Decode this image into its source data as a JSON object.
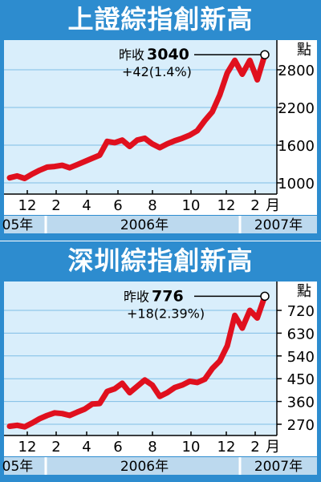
{
  "charts": [
    {
      "title": "上證綜指創新高",
      "unit": "點",
      "annotation": {
        "label": "昨收",
        "value": "3040",
        "change": "+42(1.4%)"
      },
      "month_label": "月",
      "month_ticks": [
        "12",
        "2",
        "4",
        "6",
        "8",
        "10",
        "12",
        "2"
      ],
      "year_labels": [
        "05年",
        "2006年",
        "2007年"
      ],
      "y_ticks": [
        "1000",
        "1600",
        "2200",
        "2800"
      ]
    },
    {
      "title": "深圳綜指創新高",
      "unit": "點",
      "annotation": {
        "label": "昨收",
        "value": "776",
        "change": "+18(2.39%)"
      },
      "month_label": "月",
      "month_ticks": [
        "12",
        "2",
        "4",
        "6",
        "8",
        "10",
        "12",
        "2"
      ],
      "year_labels": [
        "05年",
        "2006年",
        "2007年"
      ],
      "y_ticks": [
        "270",
        "360",
        "450",
        "540",
        "630",
        "720"
      ]
    }
  ],
  "colors": {
    "panel": "#2d8ccf",
    "plot": "#d9eefb",
    "line": "#e0101e",
    "grid": "#7fbde6",
    "axis_strip": "#bcd9ee"
  },
  "chart_data": [
    {
      "type": "line",
      "title": "上證綜指創新高",
      "ylabel": "點",
      "ylim": [
        900,
        3150
      ],
      "yticks": [
        1000,
        1600,
        2200,
        2800
      ],
      "grid": true,
      "x": [
        "2005-11",
        "2005-11",
        "2005-12",
        "2005-12",
        "2006-01",
        "2006-01",
        "2006-02",
        "2006-02",
        "2006-03",
        "2006-03",
        "2006-04",
        "2006-04",
        "2006-05",
        "2006-05",
        "2006-05",
        "2006-06",
        "2006-06",
        "2006-07",
        "2006-07",
        "2006-08",
        "2006-08",
        "2006-09",
        "2006-09",
        "2006-10",
        "2006-10",
        "2006-11",
        "2006-11",
        "2006-12",
        "2006-12",
        "2007-01",
        "2007-01",
        "2007-01",
        "2007-02",
        "2007-02",
        "2007-02"
      ],
      "y": [
        1080,
        1110,
        1070,
        1140,
        1200,
        1250,
        1260,
        1280,
        1240,
        1290,
        1340,
        1390,
        1440,
        1660,
        1640,
        1680,
        1580,
        1680,
        1710,
        1620,
        1560,
        1620,
        1670,
        1710,
        1760,
        1830,
        1990,
        2130,
        2400,
        2750,
        2950,
        2730,
        2950,
        2640,
        3040
      ]
    },
    {
      "type": "line",
      "title": "深圳綜指創新高",
      "ylabel": "點",
      "ylim": [
        240,
        790
      ],
      "yticks": [
        270,
        360,
        450,
        540,
        630,
        720
      ],
      "grid": true,
      "x": [
        "2005-11",
        "2005-11",
        "2005-12",
        "2005-12",
        "2006-01",
        "2006-01",
        "2006-02",
        "2006-02",
        "2006-03",
        "2006-03",
        "2006-04",
        "2006-04",
        "2006-05",
        "2006-05",
        "2006-05",
        "2006-06",
        "2006-06",
        "2006-07",
        "2006-07",
        "2006-08",
        "2006-08",
        "2006-09",
        "2006-09",
        "2006-10",
        "2006-10",
        "2006-11",
        "2006-11",
        "2006-12",
        "2006-12",
        "2007-01",
        "2007-01",
        "2007-01",
        "2007-02",
        "2007-02",
        "2007-02"
      ],
      "y": [
        262,
        266,
        260,
        275,
        292,
        305,
        315,
        312,
        305,
        318,
        330,
        350,
        352,
        400,
        410,
        432,
        395,
        420,
        445,
        425,
        380,
        395,
        415,
        425,
        440,
        435,
        448,
        490,
        520,
        580,
        700,
        650,
        720,
        690,
        776
      ]
    }
  ]
}
